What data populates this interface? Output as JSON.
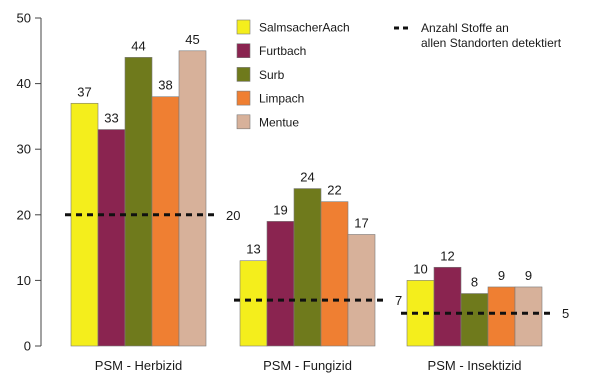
{
  "chart_data": {
    "type": "bar",
    "title": "",
    "xlabel": "",
    "ylabel": "",
    "ylim": [
      0,
      50
    ],
    "yticks": [
      0,
      10,
      20,
      30,
      40,
      50
    ],
    "grid": false,
    "legend_position": "top-right",
    "categories": [
      "PSM - Herbizid",
      "PSM - Fungizid",
      "PSM - Insektizid"
    ],
    "series": [
      {
        "name": "SalmsacherAach",
        "color": "#f4ee1c",
        "values": [
          37,
          13,
          10
        ]
      },
      {
        "name": "Furtbach",
        "color": "#8a2450",
        "values": [
          33,
          19,
          12
        ]
      },
      {
        "name": "Surb",
        "color": "#6f7a1c",
        "values": [
          44,
          24,
          8
        ]
      },
      {
        "name": "Limpach",
        "color": "#ef7f32",
        "values": [
          38,
          22,
          9
        ]
      },
      {
        "name": "Mentue",
        "color": "#d7b19a",
        "values": [
          45,
          17,
          9
        ]
      }
    ],
    "reference": {
      "name_lines": [
        "Anzahl Stoffe an",
        "allen Standorten detektiert"
      ],
      "style": "dashed",
      "color": "#111111",
      "values": [
        20,
        7,
        5
      ]
    }
  }
}
